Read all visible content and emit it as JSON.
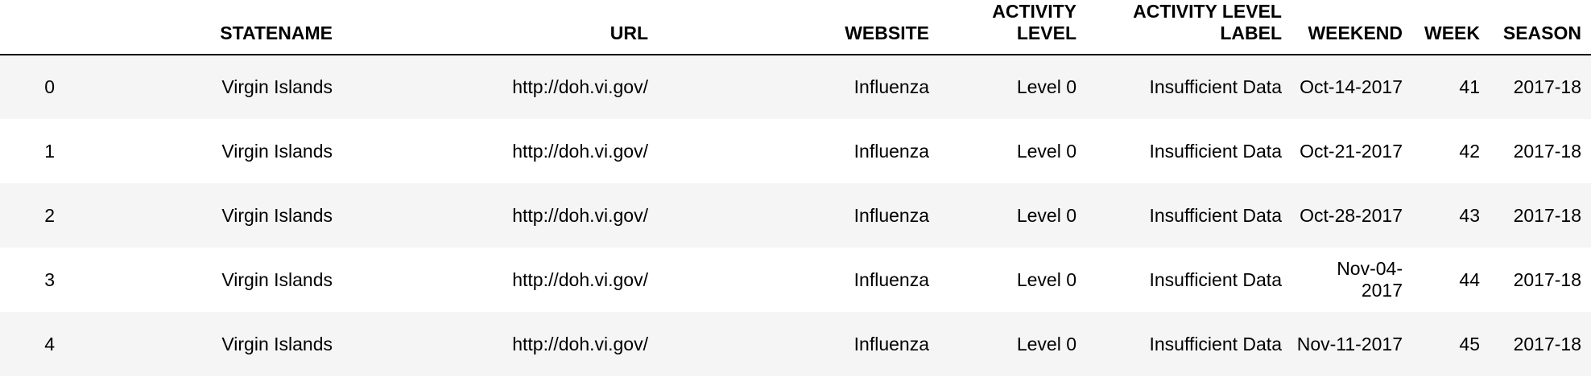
{
  "table": {
    "columns": [
      {
        "key": "index",
        "label": ""
      },
      {
        "key": "statename",
        "label": "STATENAME"
      },
      {
        "key": "url",
        "label": "URL"
      },
      {
        "key": "website",
        "label": "WEBSITE"
      },
      {
        "key": "activity_level",
        "label": "ACTIVITY LEVEL"
      },
      {
        "key": "activity_level_label",
        "label": "ACTIVITY LEVEL LABEL"
      },
      {
        "key": "weekend",
        "label": "WEEKEND"
      },
      {
        "key": "week",
        "label": "WEEK"
      },
      {
        "key": "season",
        "label": "SEASON"
      }
    ],
    "rows": [
      {
        "index": "0",
        "statename": "Virgin Islands",
        "url": "http://doh.vi.gov/",
        "website": "Influenza",
        "activity_level": "Level 0",
        "activity_level_label": "Insufficient Data",
        "weekend": "Oct-14-2017",
        "week": "41",
        "season": "2017-18"
      },
      {
        "index": "1",
        "statename": "Virgin Islands",
        "url": "http://doh.vi.gov/",
        "website": "Influenza",
        "activity_level": "Level 0",
        "activity_level_label": "Insufficient Data",
        "weekend": "Oct-21-2017",
        "week": "42",
        "season": "2017-18"
      },
      {
        "index": "2",
        "statename": "Virgin Islands",
        "url": "http://doh.vi.gov/",
        "website": "Influenza",
        "activity_level": "Level 0",
        "activity_level_label": "Insufficient Data",
        "weekend": "Oct-28-2017",
        "week": "43",
        "season": "2017-18"
      },
      {
        "index": "3",
        "statename": "Virgin Islands",
        "url": "http://doh.vi.gov/",
        "website": "Influenza",
        "activity_level": "Level 0",
        "activity_level_label": "Insufficient Data",
        "weekend": "Nov-04-2017",
        "week": "44",
        "season": "2017-18"
      },
      {
        "index": "4",
        "statename": "Virgin Islands",
        "url": "http://doh.vi.gov/",
        "website": "Influenza",
        "activity_level": "Level 0",
        "activity_level_label": "Insufficient Data",
        "weekend": "Nov-11-2017",
        "week": "45",
        "season": "2017-18"
      }
    ]
  }
}
